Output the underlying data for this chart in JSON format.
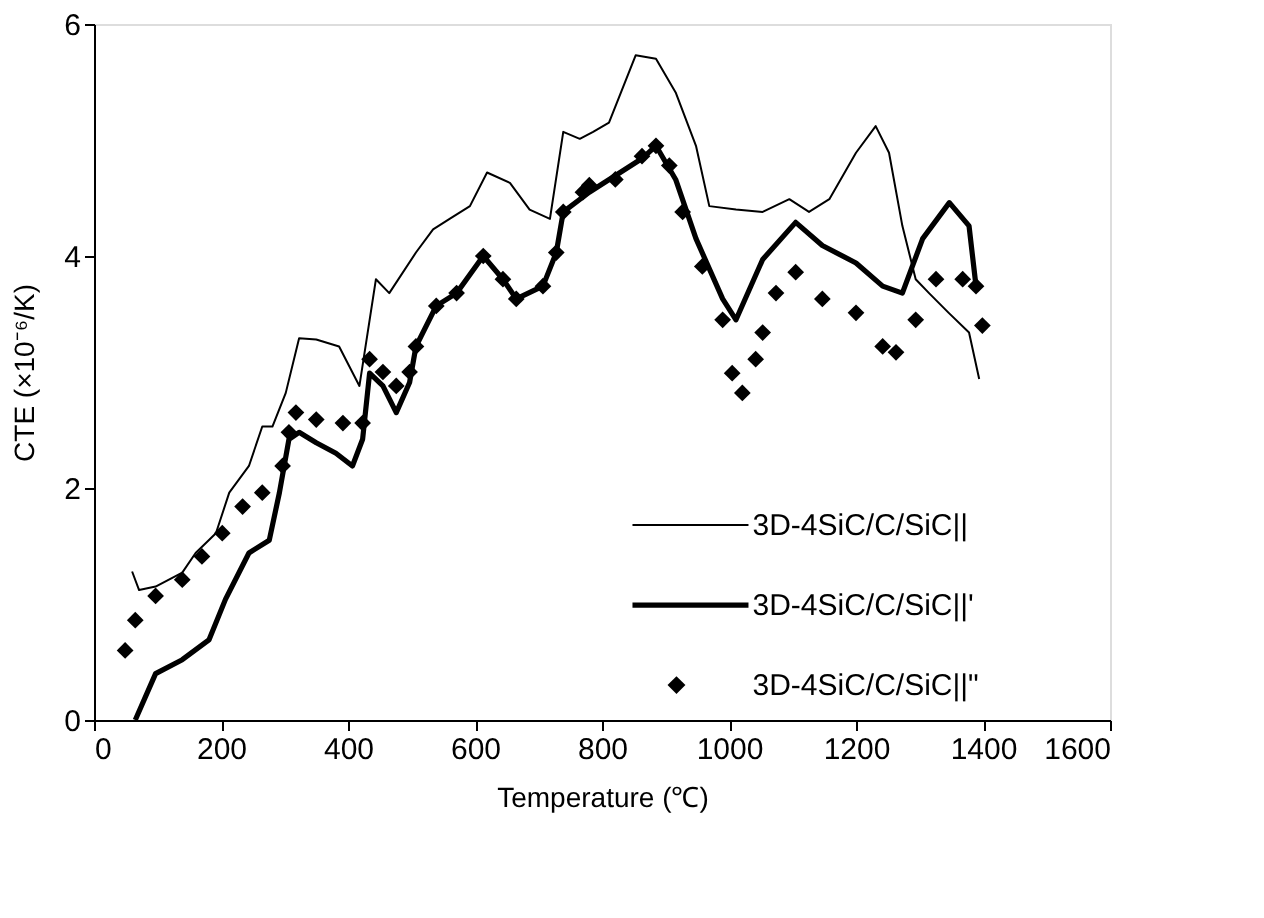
{
  "chart_data": {
    "type": "line",
    "xlabel": "Temperature (℃)",
    "ylabel": "CTE (×10⁻⁶/K)",
    "xlim": [
      0,
      1600
    ],
    "xticks": [
      0,
      200,
      400,
      600,
      800,
      1000,
      1200,
      1400,
      1600
    ],
    "ylim": [
      0,
      6
    ],
    "yticks": [
      0,
      2,
      4,
      6
    ],
    "grid": false,
    "legend": "bottom right",
    "series": [
      {
        "name": "3D-4SiC/C/SiC||",
        "color": "#000000",
        "x": [
          60,
          71,
          97,
          139,
          160,
          192,
          213,
          244,
          265,
          281,
          302,
          323,
          350,
          386,
          418,
          444,
          465,
          507,
          534,
          560,
          592,
          619,
          655,
          686,
          718,
          739,
          765,
          786,
          811,
          853,
          885,
          916,
          948,
          969,
          1011,
          1053,
          1095,
          1126,
          1158,
          1200,
          1231,
          1252,
          1273,
          1294,
          1315,
          1346,
          1378,
          1394
        ],
        "values": [
          1.28,
          1.12,
          1.15,
          1.27,
          1.44,
          1.61,
          1.96,
          2.19,
          2.53,
          2.53,
          2.82,
          3.29,
          3.28,
          3.22,
          2.88,
          3.8,
          3.68,
          4.03,
          4.23,
          4.32,
          4.43,
          4.72,
          4.63,
          4.4,
          4.32,
          5.07,
          5.01,
          5.07,
          5.15,
          5.73,
          5.7,
          5.41,
          4.95,
          4.43,
          4.4,
          4.38,
          4.49,
          4.38,
          4.49,
          4.89,
          5.12,
          4.89,
          4.26,
          3.8,
          3.68,
          3.51,
          3.34,
          2.94
        ]
      },
      {
        "name": "3D-4SiC/C/SiC||'",
        "color": "#000000",
        "x": [
          65,
          97,
          139,
          181,
          207,
          244,
          276,
          292,
          307,
          323,
          350,
          381,
          407,
          423,
          434,
          455,
          476,
          497,
          507,
          539,
          571,
          613,
          644,
          665,
          707,
          728,
          739,
          780,
          863,
          885,
          916,
          948,
          990,
          1011,
          1053,
          1105,
          1147,
          1200,
          1242,
          1273,
          1305,
          1347,
          1378,
          1389
        ],
        "values": [
          0,
          0.4,
          0.52,
          0.69,
          1.04,
          1.44,
          1.55,
          1.96,
          2.42,
          2.48,
          2.39,
          2.3,
          2.19,
          2.42,
          2.99,
          2.88,
          2.65,
          2.91,
          3.22,
          3.57,
          3.68,
          4.0,
          3.8,
          3.63,
          3.74,
          4.03,
          4.38,
          4.55,
          4.84,
          4.95,
          4.66,
          4.15,
          3.63,
          3.45,
          3.97,
          4.29,
          4.09,
          3.94,
          3.74,
          3.68,
          4.15,
          4.46,
          4.26,
          3.74
        ]
      },
      {
        "name": "3D-4SiC/C/SiC||\"",
        "color": "#000000",
        "type": "scatter",
        "marker": "diamond",
        "x": [
          49,
          65,
          97,
          139,
          170,
          202,
          234,
          265,
          297,
          307,
          318,
          350,
          392,
          423,
          434,
          455,
          476,
          497,
          507,
          539,
          571,
          613,
          644,
          665,
          707,
          728,
          739,
          770,
          780,
          821,
          863,
          885,
          906,
          927,
          958,
          990,
          1005,
          1021,
          1042,
          1053,
          1074,
          1105,
          1147,
          1200,
          1242,
          1263,
          1294,
          1326,
          1368,
          1389,
          1399
        ],
        "values": [
          0.6,
          0.86,
          1.07,
          1.21,
          1.41,
          1.61,
          1.84,
          1.96,
          2.19,
          2.48,
          2.65,
          2.59,
          2.56,
          2.56,
          3.11,
          3.0,
          2.88,
          3.0,
          3.22,
          3.57,
          3.68,
          4.0,
          3.8,
          3.63,
          3.74,
          4.03,
          4.38,
          4.55,
          4.61,
          4.66,
          4.86,
          4.95,
          4.78,
          4.38,
          3.91,
          3.45,
          2.99,
          2.82,
          3.11,
          3.34,
          3.68,
          3.86,
          3.63,
          3.51,
          3.22,
          3.17,
          3.45,
          3.8,
          3.8,
          3.74,
          3.4
        ]
      }
    ]
  }
}
